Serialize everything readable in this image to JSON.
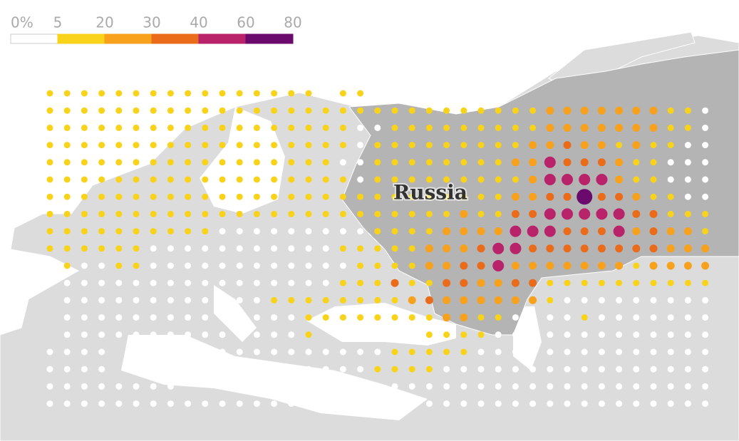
{
  "legend": {
    "ticks": [
      {
        "value": 0,
        "label": "0%"
      },
      5,
      20,
      30,
      40,
      60,
      80
    ],
    "colors": [
      "#ffffff",
      "#f8d31a",
      "#f7a11c",
      "#ea6b1a",
      "#b8236a",
      "#6b0a6d"
    ]
  },
  "label": "Russia",
  "grid": {
    "rows": [
      [
        10,
        10,
        10,
        10,
        10,
        10,
        10,
        10,
        10,
        10,
        10,
        10,
        10,
        10,
        10,
        10,
        null,
        10,
        10,
        null,
        null,
        null,
        null,
        null,
        null,
        null,
        null,
        null,
        null,
        null,
        null,
        null,
        null,
        null,
        null,
        null,
        null,
        null,
        null
      ],
      [
        10,
        10,
        10,
        10,
        10,
        10,
        10,
        10,
        10,
        10,
        10,
        10,
        10,
        10,
        10,
        10,
        10,
        10,
        10,
        10,
        10,
        10,
        10,
        10,
        10,
        10,
        10,
        10,
        10,
        25,
        25,
        25,
        25,
        25,
        25,
        25,
        10,
        10,
        2
      ],
      [
        10,
        10,
        10,
        10,
        10,
        10,
        10,
        10,
        10,
        10,
        10,
        10,
        10,
        10,
        10,
        10,
        10,
        10,
        2,
        2,
        10,
        10,
        10,
        10,
        10,
        10,
        10,
        10,
        10,
        25,
        25,
        25,
        25,
        25,
        25,
        25,
        10,
        10,
        2
      ],
      [
        10,
        10,
        10,
        10,
        10,
        10,
        10,
        10,
        10,
        10,
        10,
        10,
        10,
        10,
        10,
        10,
        10,
        10,
        2,
        10,
        10,
        10,
        10,
        10,
        10,
        10,
        10,
        10,
        25,
        25,
        35,
        25,
        25,
        10,
        25,
        10,
        10,
        2,
        2
      ],
      [
        10,
        10,
        10,
        10,
        10,
        10,
        10,
        10,
        10,
        10,
        10,
        10,
        10,
        10,
        10,
        10,
        10,
        2,
        2,
        10,
        10,
        10,
        10,
        10,
        10,
        10,
        10,
        25,
        25,
        50,
        35,
        35,
        35,
        25,
        10,
        10,
        2,
        2,
        2
      ],
      [
        10,
        10,
        10,
        10,
        10,
        10,
        10,
        10,
        10,
        10,
        10,
        10,
        10,
        10,
        10,
        10,
        10,
        10,
        2,
        10,
        10,
        10,
        10,
        10,
        10,
        10,
        10,
        10,
        25,
        50,
        50,
        50,
        50,
        25,
        10,
        10,
        2,
        2,
        2
      ],
      [
        10,
        10,
        10,
        10,
        10,
        10,
        10,
        10,
        10,
        10,
        10,
        10,
        10,
        10,
        10,
        10,
        10,
        10,
        10,
        10,
        10,
        10,
        10,
        10,
        10,
        10,
        10,
        25,
        25,
        35,
        35,
        70,
        35,
        35,
        25,
        10,
        10,
        2,
        2
      ],
      [
        10,
        10,
        10,
        10,
        10,
        10,
        10,
        10,
        10,
        10,
        10,
        10,
        10,
        10,
        10,
        10,
        10,
        10,
        10,
        10,
        10,
        10,
        10,
        10,
        25,
        10,
        10,
        35,
        35,
        50,
        50,
        50,
        50,
        50,
        35,
        35,
        10,
        10,
        10
      ],
      [
        10,
        10,
        10,
        10,
        10,
        10,
        10,
        10,
        10,
        10,
        2,
        2,
        2,
        2,
        2,
        2,
        2,
        2,
        2,
        10,
        10,
        10,
        10,
        25,
        25,
        25,
        25,
        50,
        50,
        50,
        35,
        35,
        35,
        50,
        25,
        35,
        25,
        25,
        10
      ],
      [
        10,
        10,
        10,
        10,
        10,
        10,
        2,
        2,
        2,
        2,
        2,
        2,
        2,
        2,
        2,
        2,
        2,
        10,
        10,
        10,
        10,
        10,
        25,
        25,
        25,
        35,
        50,
        50,
        35,
        35,
        35,
        35,
        35,
        35,
        35,
        35,
        25,
        25,
        25
      ],
      [
        null,
        10,
        2,
        2,
        10,
        10,
        2,
        2,
        2,
        2,
        2,
        2,
        2,
        2,
        2,
        2,
        2,
        2,
        10,
        10,
        10,
        10,
        25,
        25,
        35,
        35,
        50,
        25,
        25,
        25,
        25,
        25,
        25,
        25,
        10,
        25,
        25,
        25,
        25
      ],
      [
        null,
        2,
        2,
        2,
        2,
        2,
        2,
        2,
        2,
        2,
        2,
        2,
        2,
        2,
        2,
        2,
        2,
        10,
        10,
        10,
        35,
        10,
        10,
        35,
        35,
        25,
        25,
        35,
        35,
        10,
        10,
        10,
        10,
        10,
        10,
        10,
        10,
        10,
        10
      ],
      [
        null,
        2,
        2,
        2,
        2,
        2,
        2,
        2,
        2,
        2,
        2,
        2,
        2,
        10,
        10,
        10,
        10,
        10,
        10,
        10,
        10,
        25,
        35,
        25,
        25,
        25,
        25,
        25,
        25,
        10,
        2,
        2,
        2,
        2,
        2,
        2,
        2,
        2,
        2
      ],
      [
        null,
        2,
        2,
        2,
        2,
        2,
        2,
        2,
        2,
        2,
        2,
        2,
        2,
        2,
        2,
        10,
        10,
        10,
        10,
        10,
        10,
        10,
        10,
        25,
        25,
        10,
        10,
        2,
        null,
        2,
        2,
        10,
        2,
        2,
        2,
        2,
        2,
        2,
        2
      ],
      [
        null,
        2,
        2,
        2,
        2,
        2,
        2,
        2,
        2,
        2,
        2,
        2,
        2,
        2,
        2,
        10,
        null,
        null,
        null,
        null,
        null,
        null,
        10,
        10,
        10,
        10,
        2,
        2,
        null,
        2,
        2,
        2,
        2,
        2,
        2,
        2,
        2,
        2,
        2
      ],
      [
        2,
        2,
        2,
        2,
        null,
        null,
        2,
        2,
        null,
        null,
        2,
        2,
        2,
        2,
        2,
        2,
        2,
        2,
        2,
        2,
        10,
        10,
        10,
        10,
        10,
        2,
        2,
        2,
        null,
        2,
        2,
        2,
        2,
        2,
        2,
        2,
        2,
        2,
        2
      ],
      [
        2,
        2,
        2,
        2,
        null,
        null,
        null,
        null,
        null,
        null,
        null,
        null,
        null,
        null,
        null,
        2,
        2,
        2,
        2,
        10,
        10,
        10,
        10,
        2,
        2,
        2,
        2,
        2,
        2,
        2,
        2,
        2,
        2,
        2,
        2,
        2,
        2,
        2,
        2
      ],
      [
        2,
        2,
        2,
        2,
        2,
        2,
        2,
        2,
        null,
        null,
        null,
        null,
        null,
        null,
        null,
        null,
        null,
        null,
        2,
        2,
        2,
        2,
        2,
        2,
        2,
        2,
        2,
        2,
        2,
        2,
        2,
        2,
        2,
        2,
        2,
        2,
        2,
        2,
        2
      ],
      [
        2,
        2,
        2,
        2,
        2,
        2,
        2,
        2,
        2,
        2,
        2,
        2,
        2,
        2,
        2,
        2,
        2,
        null,
        2,
        2,
        2,
        2,
        2,
        2,
        2,
        2,
        2,
        2,
        2,
        2,
        2,
        2,
        2,
        2,
        2,
        2,
        2,
        2,
        2
      ]
    ]
  }
}
